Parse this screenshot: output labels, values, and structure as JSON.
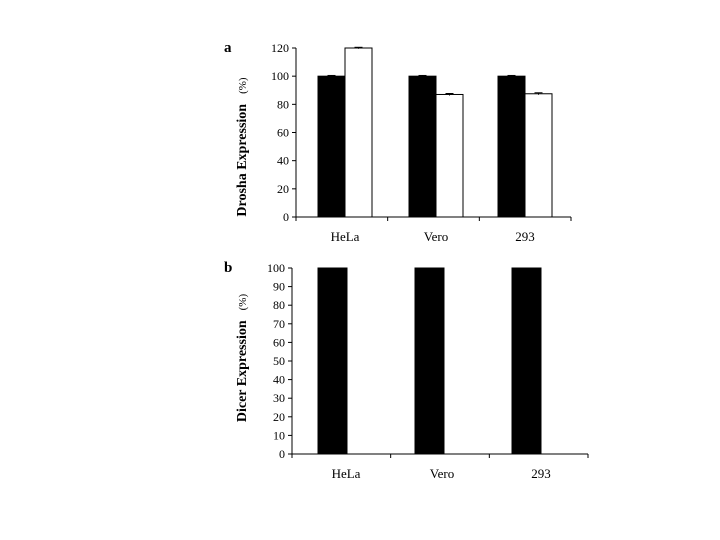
{
  "chart_data": [
    {
      "panel": "a",
      "type": "bar",
      "ylabel": "Drosha  Expression",
      "ylabel_unit": "(%)",
      "ylim": [
        0,
        120
      ],
      "ytick_step": 20,
      "categories": [
        "HeLa",
        "Vero",
        "293"
      ],
      "series": [
        {
          "color": "#000000",
          "values": [
            100,
            100,
            100
          ],
          "errors": [
            0.5,
            0.5,
            0.5
          ]
        },
        {
          "color": "#ffffff",
          "values": [
            120,
            87,
            87.5
          ],
          "errors": [
            0.5,
            0.7,
            0.7
          ]
        }
      ],
      "grid": false,
      "legend": "none"
    },
    {
      "panel": "b",
      "type": "bar",
      "ylabel": "Dicer  Expression",
      "ylabel_unit": "(%)",
      "ylim": [
        0,
        100
      ],
      "ytick_step": 10,
      "categories": [
        "HeLa",
        "Vero",
        "293"
      ],
      "series": [
        {
          "color": "#000000",
          "values": [
            100,
            100,
            100
          ]
        }
      ],
      "grid": false,
      "legend": "none"
    }
  ]
}
